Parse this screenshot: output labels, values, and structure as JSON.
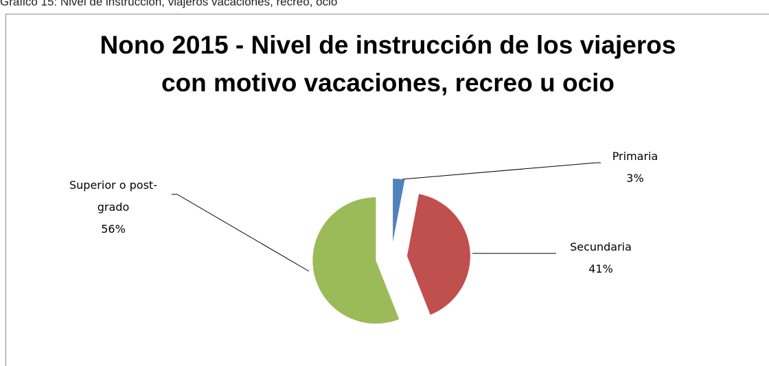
{
  "caption": "Gráfico 15: Nivel de instrucción, viajeros vacaciones, recreo, ocio",
  "chart_data": {
    "type": "pie",
    "title": "Nono 2015 - Nivel de instrucción de los viajeros con motivo vacaciones, recreo u ocio",
    "categories": [
      "Primaria",
      "Secundaria",
      "Superior o post-grado"
    ],
    "values": [
      3,
      41,
      56
    ],
    "value_labels": [
      "3%",
      "41%",
      "56%"
    ],
    "colors": [
      "#4f81bd",
      "#c0504d",
      "#9bbb59"
    ],
    "exploded": true
  }
}
